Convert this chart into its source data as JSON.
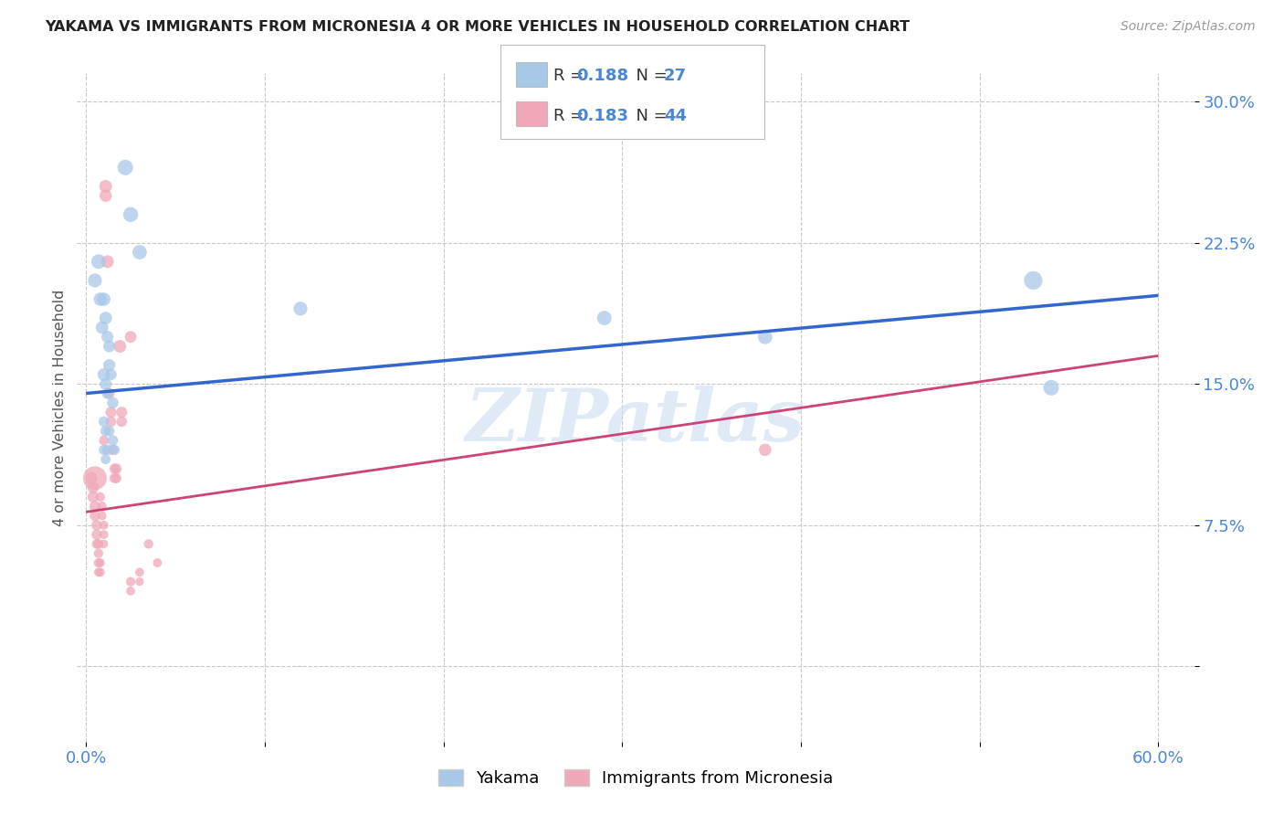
{
  "title": "YAKAMA VS IMMIGRANTS FROM MICRONESIA 4 OR MORE VEHICLES IN HOUSEHOLD CORRELATION CHART",
  "source": "Source: ZipAtlas.com",
  "ylabel": "4 or more Vehicles in Household",
  "xlim": [
    -0.005,
    0.62
  ],
  "ylim": [
    -0.04,
    0.315
  ],
  "y_ticks": [
    0.0,
    0.075,
    0.15,
    0.225,
    0.3
  ],
  "y_tick_labels": [
    "",
    "7.5%",
    "15.0%",
    "22.5%",
    "30.0%"
  ],
  "x_tick_positions": [
    0.0,
    0.1,
    0.2,
    0.3,
    0.4,
    0.5,
    0.6
  ],
  "x_tick_labels": [
    "0.0%",
    "",
    "",
    "",
    "",
    "",
    "60.0%"
  ],
  "blue_color": "#a8c8e8",
  "pink_color": "#f0a8b8",
  "blue_line_color": "#3366cc",
  "pink_line_color": "#cc4477",
  "blue_line_x0": 0.0,
  "blue_line_y0": 0.145,
  "blue_line_x1": 0.6,
  "blue_line_y1": 0.197,
  "pink_line_x0": 0.0,
  "pink_line_y0": 0.082,
  "pink_line_x1": 0.6,
  "pink_line_y1": 0.165,
  "watermark": "ZIPatlas",
  "watermark_color": "#ccddf0",
  "legend_label_blue": "Yakama",
  "legend_label_pink": "Immigrants from Micronesia",
  "blue_scatter": [
    [
      0.005,
      0.205
    ],
    [
      0.007,
      0.215
    ],
    [
      0.008,
      0.195
    ],
    [
      0.009,
      0.18
    ],
    [
      0.01,
      0.195
    ],
    [
      0.011,
      0.185
    ],
    [
      0.012,
      0.175
    ],
    [
      0.013,
      0.17
    ],
    [
      0.01,
      0.155
    ],
    [
      0.011,
      0.15
    ],
    [
      0.013,
      0.16
    ],
    [
      0.014,
      0.155
    ],
    [
      0.015,
      0.14
    ],
    [
      0.012,
      0.145
    ],
    [
      0.01,
      0.13
    ],
    [
      0.011,
      0.125
    ],
    [
      0.012,
      0.115
    ],
    [
      0.013,
      0.125
    ],
    [
      0.015,
      0.12
    ],
    [
      0.016,
      0.115
    ],
    [
      0.01,
      0.115
    ],
    [
      0.011,
      0.11
    ],
    [
      0.022,
      0.265
    ],
    [
      0.025,
      0.24
    ],
    [
      0.03,
      0.22
    ],
    [
      0.12,
      0.19
    ],
    [
      0.38,
      0.175
    ],
    [
      0.53,
      0.205
    ],
    [
      0.54,
      0.148
    ],
    [
      0.29,
      0.185
    ]
  ],
  "pink_scatter": [
    [
      0.003,
      0.1
    ],
    [
      0.004,
      0.095
    ],
    [
      0.004,
      0.09
    ],
    [
      0.005,
      0.085
    ],
    [
      0.005,
      0.1
    ],
    [
      0.005,
      0.08
    ],
    [
      0.006,
      0.075
    ],
    [
      0.006,
      0.07
    ],
    [
      0.006,
      0.065
    ],
    [
      0.007,
      0.065
    ],
    [
      0.007,
      0.06
    ],
    [
      0.007,
      0.055
    ],
    [
      0.007,
      0.05
    ],
    [
      0.008,
      0.05
    ],
    [
      0.008,
      0.055
    ],
    [
      0.008,
      0.09
    ],
    [
      0.009,
      0.085
    ],
    [
      0.009,
      0.08
    ],
    [
      0.01,
      0.075
    ],
    [
      0.01,
      0.07
    ],
    [
      0.01,
      0.065
    ],
    [
      0.01,
      0.12
    ],
    [
      0.011,
      0.255
    ],
    [
      0.011,
      0.25
    ],
    [
      0.012,
      0.215
    ],
    [
      0.013,
      0.145
    ],
    [
      0.014,
      0.135
    ],
    [
      0.014,
      0.13
    ],
    [
      0.015,
      0.115
    ],
    [
      0.016,
      0.105
    ],
    [
      0.016,
      0.1
    ],
    [
      0.017,
      0.105
    ],
    [
      0.017,
      0.1
    ],
    [
      0.019,
      0.17
    ],
    [
      0.02,
      0.135
    ],
    [
      0.02,
      0.13
    ],
    [
      0.025,
      0.175
    ],
    [
      0.025,
      0.045
    ],
    [
      0.025,
      0.04
    ],
    [
      0.03,
      0.05
    ],
    [
      0.03,
      0.045
    ],
    [
      0.035,
      0.065
    ],
    [
      0.04,
      0.055
    ],
    [
      0.38,
      0.115
    ]
  ],
  "blue_sizes": [
    120,
    130,
    110,
    100,
    110,
    100,
    90,
    90,
    100,
    90,
    90,
    80,
    80,
    80,
    70,
    70,
    70,
    70,
    70,
    65,
    65,
    60,
    150,
    140,
    130,
    120,
    130,
    210,
    150,
    130
  ],
  "pink_sizes": [
    90,
    85,
    80,
    75,
    350,
    70,
    70,
    65,
    60,
    60,
    55,
    55,
    50,
    50,
    50,
    55,
    55,
    50,
    50,
    50,
    45,
    60,
    100,
    95,
    100,
    75,
    75,
    70,
    65,
    65,
    65,
    70,
    65,
    100,
    75,
    70,
    85,
    55,
    50,
    50,
    45,
    55,
    50,
    95
  ]
}
